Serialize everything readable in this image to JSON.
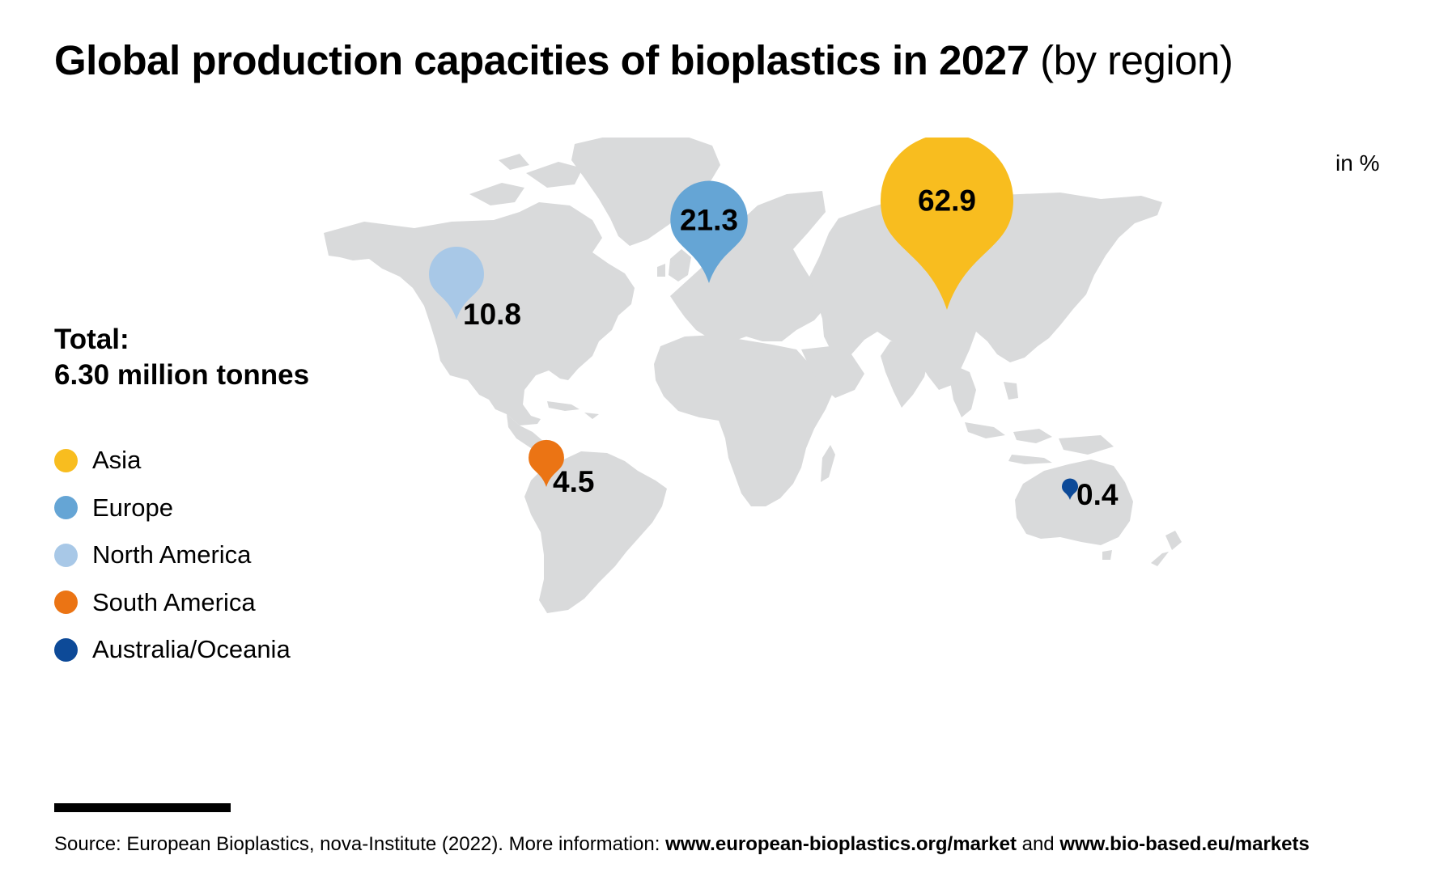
{
  "title": {
    "bold": "Global production capacities of bioplastics in 2027",
    "light": "(by region)"
  },
  "unit": "in %",
  "total": {
    "line1": "Total:",
    "line2": "6.30 million tonnes"
  },
  "chart_data": {
    "type": "map-markers",
    "title": "Global production capacities of bioplastics in 2027 (by region)",
    "unit": "in %",
    "total": "6.30 million tonnes",
    "legend_placement": "left",
    "categories": [
      "Asia",
      "Europe",
      "North America",
      "South America",
      "Australia/Oceania"
    ],
    "values": [
      62.9,
      21.3,
      10.8,
      4.5,
      0.4
    ],
    "value_labels": [
      "62.9",
      "21.3",
      "10.8",
      "4.5",
      "0.4"
    ],
    "colors": [
      "#F8BD1F",
      "#65A5D5",
      "#A8C8E7",
      "#EB7414",
      "#0D4A98"
    ]
  },
  "source": {
    "prefix": "Source: European Bioplastics, nova-Institute (2022). More information: ",
    "link1": "www.european-bioplastics.org/market",
    "mid": " and ",
    "link2": "www.bio-based.eu/markets"
  }
}
